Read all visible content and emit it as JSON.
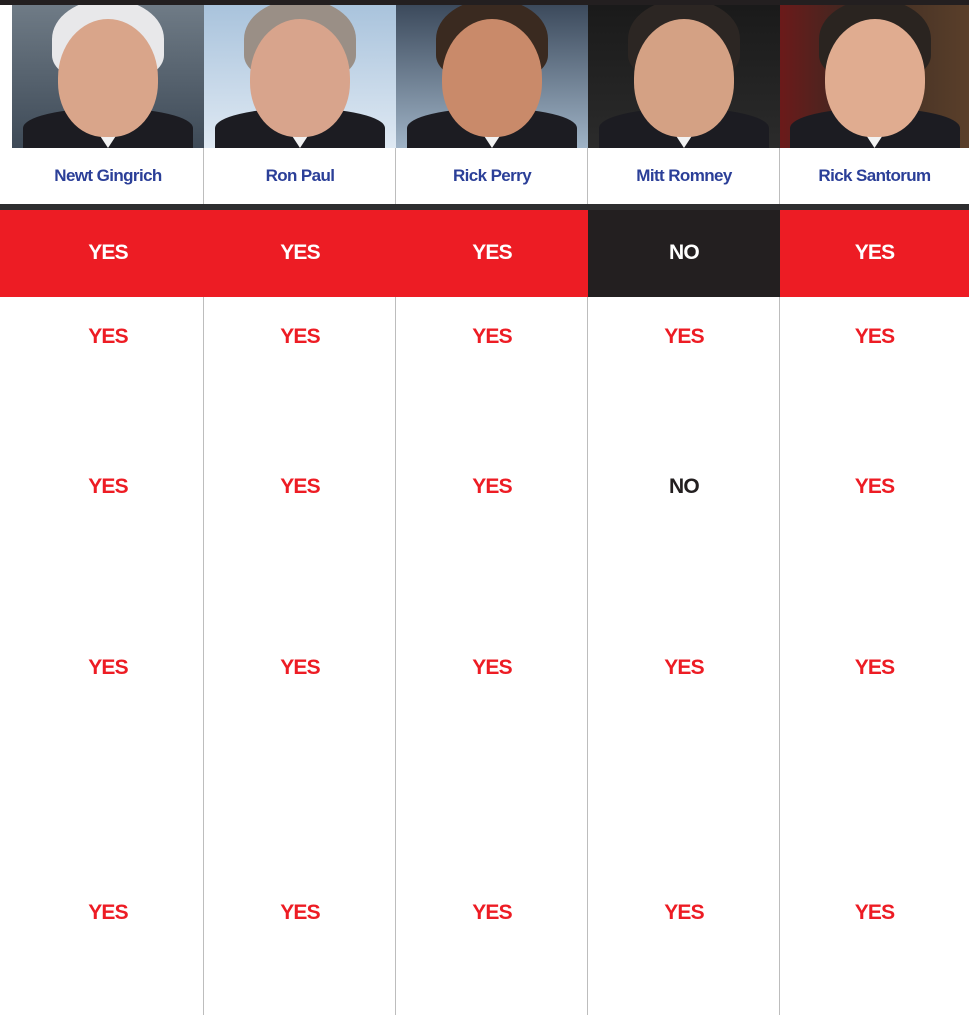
{
  "candidates": [
    "Newt Gingrich",
    "Ron Paul",
    "Rick Perry",
    "Mitt Romney",
    "Rick Santorum"
  ],
  "rows": [
    [
      {
        "text": "YES",
        "color": "#ed1c24"
      },
      {
        "text": "YES",
        "color": "#ed1c24"
      },
      {
        "text": "YES",
        "color": "#ed1c24"
      },
      {
        "text": "NO",
        "color": "#231f20"
      },
      {
        "text": "YES",
        "color": "#ed1c24"
      }
    ],
    [
      {
        "text": "YES",
        "color": "#ed1c24"
      },
      {
        "text": "YES",
        "color": "#ed1c24"
      },
      {
        "text": "YES",
        "color": "#ed1c24"
      },
      {
        "text": "YES",
        "color": "#ed1c24"
      },
      {
        "text": "YES",
        "color": "#ed1c24"
      }
    ],
    [
      {
        "text": "YES",
        "color": "#ed1c24"
      },
      {
        "text": "YES",
        "color": "#ed1c24"
      },
      {
        "text": "YES",
        "color": "#ed1c24"
      },
      {
        "text": "NO",
        "color": "#231f20"
      },
      {
        "text": "YES",
        "color": "#ed1c24"
      }
    ],
    [
      {
        "text": "YES",
        "color": "#ed1c24"
      },
      {
        "text": "YES",
        "color": "#ed1c24"
      },
      {
        "text": "YES",
        "color": "#ed1c24"
      },
      {
        "text": "YES",
        "color": "#ed1c24"
      },
      {
        "text": "YES",
        "color": "#ed1c24"
      }
    ],
    [
      {
        "text": "YES",
        "color": "#ed1c24"
      },
      {
        "text": "YES",
        "color": "#ed1c24"
      },
      {
        "text": "YES",
        "color": "#ed1c24"
      },
      {
        "text": "YES",
        "color": "#ed1c24"
      },
      {
        "text": "YES",
        "color": "#ed1c24"
      }
    ]
  ]
}
